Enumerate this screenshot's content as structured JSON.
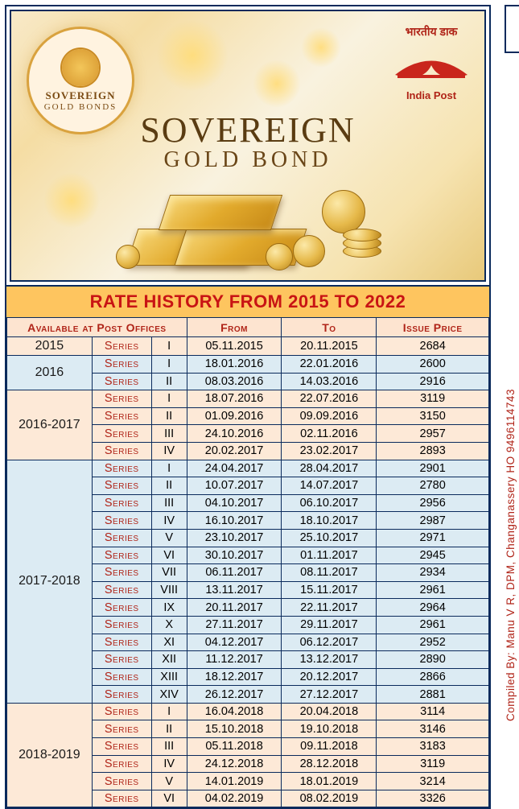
{
  "banner": {
    "badge_line1": "SOVEREIGN",
    "badge_line2": "GOLD BONDS",
    "india_post_hindi": "भारतीय डाक",
    "india_post_en": "India Post",
    "title_line1": "SOVEREIGN",
    "title_line2": "GOLD BOND"
  },
  "rate_title": "RATE HISTORY FROM 2015 TO 2022",
  "headers": {
    "avail": "Available at Post Offices",
    "from": "From",
    "to": "To",
    "price": "Issue Price"
  },
  "series_label": "Series",
  "groups": [
    {
      "year": "2015",
      "band": "a",
      "rows": [
        {
          "num": "I",
          "from": "05.11.2015",
          "to": "20.11.2015",
          "price": "2684"
        }
      ]
    },
    {
      "year": "2016",
      "band": "b",
      "rows": [
        {
          "num": "I",
          "from": "18.01.2016",
          "to": "22.01.2016",
          "price": "2600"
        },
        {
          "num": "II",
          "from": "08.03.2016",
          "to": "14.03.2016",
          "price": "2916"
        }
      ]
    },
    {
      "year": "2016-2017",
      "band": "a",
      "rows": [
        {
          "num": "I",
          "from": "18.07.2016",
          "to": "22.07.2016",
          "price": "3119"
        },
        {
          "num": "II",
          "from": "01.09.2016",
          "to": "09.09.2016",
          "price": "3150"
        },
        {
          "num": "III",
          "from": "24.10.2016",
          "to": "02.11.2016",
          "price": "2957"
        },
        {
          "num": "IV",
          "from": "20.02.2017",
          "to": "23.02.2017",
          "price": "2893"
        }
      ]
    },
    {
      "year": "2017-2018",
      "band": "b",
      "rows": [
        {
          "num": "I",
          "from": "24.04.2017",
          "to": "28.04.2017",
          "price": "2901"
        },
        {
          "num": "II",
          "from": "10.07.2017",
          "to": "14.07.2017",
          "price": "2780"
        },
        {
          "num": "III",
          "from": "04.10.2017",
          "to": "06.10.2017",
          "price": "2956"
        },
        {
          "num": "IV",
          "from": "16.10.2017",
          "to": "18.10.2017",
          "price": "2987"
        },
        {
          "num": "V",
          "from": "23.10.2017",
          "to": "25.10.2017",
          "price": "2971"
        },
        {
          "num": "VI",
          "from": "30.10.2017",
          "to": "01.11.2017",
          "price": "2945"
        },
        {
          "num": "VII",
          "from": "06.11.2017",
          "to": "08.11.2017",
          "price": "2934"
        },
        {
          "num": "VIII",
          "from": "13.11.2017",
          "to": "15.11.2017",
          "price": "2961"
        },
        {
          "num": "IX",
          "from": "20.11.2017",
          "to": "22.11.2017",
          "price": "2964"
        },
        {
          "num": "X",
          "from": "27.11.2017",
          "to": "29.11.2017",
          "price": "2961"
        },
        {
          "num": "XI",
          "from": "04.12.2017",
          "to": "06.12.2017",
          "price": "2952"
        },
        {
          "num": "XII",
          "from": "11.12.2017",
          "to": "13.12.2017",
          "price": "2890"
        },
        {
          "num": "XIII",
          "from": "18.12.2017",
          "to": "20.12.2017",
          "price": "2866"
        },
        {
          "num": "XIV",
          "from": "26.12.2017",
          "to": "27.12.2017",
          "price": "2881"
        }
      ]
    },
    {
      "year": "2018-2019",
      "band": "a",
      "rows": [
        {
          "num": "I",
          "from": "16.04.2018",
          "to": "20.04.2018",
          "price": "3114"
        },
        {
          "num": "II",
          "from": "15.10.2018",
          "to": "19.10.2018",
          "price": "3146"
        },
        {
          "num": "III",
          "from": "05.11.2018",
          "to": "09.11.2018",
          "price": "3183"
        },
        {
          "num": "IV",
          "from": "24.12.2018",
          "to": "28.12.2018",
          "price": "3119"
        },
        {
          "num": "V",
          "from": "14.01.2019",
          "to": "18.01.2019",
          "price": "3214"
        },
        {
          "num": "VI",
          "from": "04.02.2019",
          "to": "08.02.2019",
          "price": "3326"
        }
      ]
    }
  ],
  "side_text": "Compiled By: Manu V R, DPM, Changanassery HO 9496114743",
  "colors": {
    "border": "#0a2a5c",
    "title_bar_bg": "#fec55f",
    "title_text": "#c81414",
    "header_bg": "#fde4d0",
    "header_text": "#b02418",
    "band_a": "#fde9d7",
    "band_b": "#dcebf3"
  }
}
